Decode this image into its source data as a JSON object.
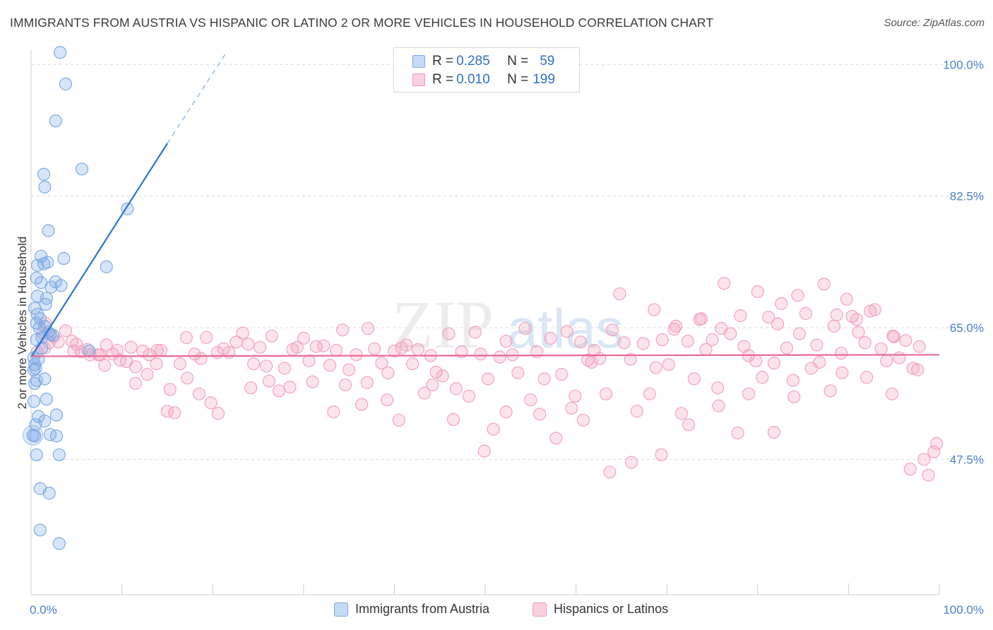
{
  "title": "IMMIGRANTS FROM AUSTRIA VS HISPANIC OR LATINO 2 OR MORE VEHICLES IN HOUSEHOLD CORRELATION CHART",
  "source": "Source: ZipAtlas.com",
  "watermark": {
    "zip": "ZIP",
    "atlas": "atlas"
  },
  "legend": {
    "rows": [
      {
        "r_label": "R =",
        "r_value": "0.285",
        "n_label": "N =",
        "n_value": "59",
        "color": "#7aa9e8"
      },
      {
        "r_label": "R =",
        "r_value": "0.010",
        "n_label": "N =",
        "n_value": "199",
        "color": "#f19ab6"
      }
    ]
  },
  "bottom_legend": [
    {
      "label": "Immigrants from Austria",
      "color": "#7aa9e8"
    },
    {
      "label": "Hispanics or Latinos",
      "color": "#f19ab6"
    }
  ],
  "chart_data": {
    "type": "scatter",
    "title": "IMMIGRANTS FROM AUSTRIA VS HISPANIC OR LATINO 2 OR MORE VEHICLES IN HOUSEHOLD CORRELATION CHART",
    "xlabel": "",
    "ylabel": "2 or more Vehicles in Household",
    "xlim": [
      0,
      100
    ],
    "ylim": [
      29.5,
      102
    ],
    "x_tick_labels": [
      "0.0%",
      "100.0%"
    ],
    "y_ticks": [
      47.5,
      65.0,
      82.5,
      100.0
    ],
    "y_tick_labels": [
      "47.5%",
      "65.0%",
      "82.5%",
      "100.0%"
    ],
    "grid": true,
    "series": [
      {
        "name": "Immigrants from Austria",
        "color": "#7aa9e8",
        "trend": {
          "x0": 0.0,
          "y0": 61.1,
          "x1": 15.0,
          "y1": 89.5,
          "dash_to_x": 21.5,
          "dash_to_y": 101.6
        },
        "points": [
          [
            3.2,
            101.6
          ],
          [
            3.8,
            97.4
          ],
          [
            2.7,
            92.5
          ],
          [
            5.6,
            86.1
          ],
          [
            1.4,
            85.4
          ],
          [
            1.5,
            83.7
          ],
          [
            10.6,
            80.8
          ],
          [
            1.9,
            77.9
          ],
          [
            3.6,
            74.2
          ],
          [
            8.3,
            73.1
          ],
          [
            1.1,
            74.5
          ],
          [
            1.8,
            73.7
          ],
          [
            0.7,
            73.3
          ],
          [
            1.4,
            73.5
          ],
          [
            0.6,
            71.6
          ],
          [
            1.1,
            71.0
          ],
          [
            2.7,
            71.1
          ],
          [
            2.2,
            70.4
          ],
          [
            3.3,
            70.6
          ],
          [
            1.7,
            68.9
          ],
          [
            0.7,
            69.2
          ],
          [
            1.6,
            68.1
          ],
          [
            0.4,
            67.6
          ],
          [
            0.7,
            66.8
          ],
          [
            0.6,
            65.6
          ],
          [
            1.0,
            66.2
          ],
          [
            1.5,
            65.2
          ],
          [
            1.9,
            64.4
          ],
          [
            2.4,
            64.0
          ],
          [
            1.2,
            63.7
          ],
          [
            0.6,
            63.4
          ],
          [
            2.1,
            64.1
          ],
          [
            6.4,
            61.9
          ],
          [
            0.8,
            60.8
          ],
          [
            0.4,
            60.1
          ],
          [
            0.3,
            59.4
          ],
          [
            0.5,
            59.6
          ],
          [
            0.6,
            58.0
          ],
          [
            1.5,
            58.2
          ],
          [
            0.4,
            57.6
          ],
          [
            1.7,
            55.5
          ],
          [
            0.3,
            55.2
          ],
          [
            0.8,
            53.2
          ],
          [
            1.5,
            52.6
          ],
          [
            2.8,
            53.4
          ],
          [
            0.5,
            52.1
          ],
          [
            2.1,
            50.8
          ],
          [
            2.8,
            50.6
          ],
          [
            0.2,
            50.7
          ],
          [
            0.4,
            50.6
          ],
          [
            0.6,
            48.1
          ],
          [
            3.1,
            48.1
          ],
          [
            1.0,
            43.6
          ],
          [
            2.0,
            43.0
          ],
          [
            1.0,
            38.1
          ],
          [
            3.1,
            36.3
          ],
          [
            0.3,
            61.0
          ],
          [
            1.2,
            62.3
          ],
          [
            0.9,
            65.0
          ]
        ]
      },
      {
        "name": "Hispanics or Latinos",
        "color": "#f19ab6",
        "trend": {
          "x0": 0.0,
          "y0": 61.2,
          "x1": 100.0,
          "y1": 61.4
        },
        "points": [
          [
            1.3,
            64.3
          ],
          [
            2.5,
            63.8
          ],
          [
            1.6,
            65.6
          ],
          [
            3.0,
            63.1
          ],
          [
            4.7,
            61.9
          ],
          [
            4.5,
            63.2
          ],
          [
            3.8,
            64.6
          ],
          [
            5.0,
            62.8
          ],
          [
            5.5,
            61.8
          ],
          [
            6.2,
            62.1
          ],
          [
            7.6,
            61.4
          ],
          [
            8.3,
            62.7
          ],
          [
            9.0,
            61.5
          ],
          [
            9.8,
            60.7
          ],
          [
            10.5,
            60.5
          ],
          [
            11.0,
            62.4
          ],
          [
            11.5,
            59.8
          ],
          [
            12.3,
            61.9
          ],
          [
            13.0,
            61.4
          ],
          [
            13.8,
            60.2
          ],
          [
            14.3,
            62.0
          ],
          [
            15.3,
            56.8
          ],
          [
            15.8,
            53.7
          ],
          [
            16.4,
            60.2
          ],
          [
            17.1,
            63.7
          ],
          [
            18.0,
            61.5
          ],
          [
            18.7,
            60.9
          ],
          [
            19.3,
            63.7
          ],
          [
            19.8,
            55.0
          ],
          [
            20.5,
            61.7
          ],
          [
            21.2,
            62.2
          ],
          [
            21.8,
            61.7
          ],
          [
            22.6,
            63.1
          ],
          [
            23.3,
            64.3
          ],
          [
            23.9,
            62.8
          ],
          [
            24.5,
            60.2
          ],
          [
            25.2,
            62.4
          ],
          [
            25.9,
            59.9
          ],
          [
            26.5,
            63.9
          ],
          [
            27.3,
            56.6
          ],
          [
            27.9,
            59.6
          ],
          [
            28.8,
            62.1
          ],
          [
            29.3,
            62.4
          ],
          [
            30.0,
            63.6
          ],
          [
            30.6,
            60.6
          ],
          [
            31.4,
            62.5
          ],
          [
            32.2,
            62.6
          ],
          [
            32.9,
            60.0
          ],
          [
            33.6,
            62.0
          ],
          [
            34.3,
            64.7
          ],
          [
            35.0,
            59.4
          ],
          [
            35.8,
            61.4
          ],
          [
            36.4,
            54.8
          ],
          [
            37.1,
            64.9
          ],
          [
            37.8,
            62.2
          ],
          [
            38.6,
            60.3
          ],
          [
            39.3,
            59.0
          ],
          [
            40.0,
            61.9
          ],
          [
            40.8,
            62.3
          ],
          [
            41.3,
            62.7
          ],
          [
            42.0,
            60.2
          ],
          [
            42.6,
            62.1
          ],
          [
            43.3,
            56.3
          ],
          [
            44.0,
            61.3
          ],
          [
            44.6,
            59.1
          ],
          [
            45.3,
            58.6
          ],
          [
            46.0,
            64.2
          ],
          [
            46.8,
            56.9
          ],
          [
            47.4,
            61.8
          ],
          [
            48.2,
            55.9
          ],
          [
            48.9,
            64.4
          ],
          [
            49.5,
            61.5
          ],
          [
            50.3,
            58.2
          ],
          [
            50.9,
            51.5
          ],
          [
            51.6,
            61.1
          ],
          [
            52.3,
            63.2
          ],
          [
            53.0,
            61.4
          ],
          [
            53.6,
            59.0
          ],
          [
            54.4,
            64.9
          ],
          [
            55.0,
            55.4
          ],
          [
            55.7,
            61.8
          ],
          [
            56.5,
            58.2
          ],
          [
            57.2,
            63.6
          ],
          [
            57.8,
            50.3
          ],
          [
            58.4,
            58.8
          ],
          [
            59.0,
            64.5
          ],
          [
            59.9,
            55.9
          ],
          [
            60.5,
            63.1
          ],
          [
            61.3,
            60.7
          ],
          [
            62.0,
            62.0
          ],
          [
            62.6,
            60.9
          ],
          [
            63.3,
            56.2
          ],
          [
            64.0,
            64.7
          ],
          [
            64.8,
            69.5
          ],
          [
            65.3,
            63.0
          ],
          [
            66.0,
            60.8
          ],
          [
            66.7,
            53.9
          ],
          [
            67.4,
            62.9
          ],
          [
            68.1,
            56.2
          ],
          [
            68.8,
            59.7
          ],
          [
            69.5,
            63.4
          ],
          [
            70.2,
            60.1
          ],
          [
            70.8,
            64.8
          ],
          [
            71.6,
            53.6
          ],
          [
            72.3,
            63.2
          ],
          [
            73.0,
            58.2
          ],
          [
            73.6,
            66.1
          ],
          [
            74.3,
            62.1
          ],
          [
            75.0,
            63.4
          ],
          [
            75.6,
            57.0
          ],
          [
            76.3,
            70.9
          ],
          [
            77.0,
            64.2
          ],
          [
            77.8,
            51.0
          ],
          [
            78.5,
            62.5
          ],
          [
            79.0,
            61.3
          ],
          [
            79.8,
            60.6
          ],
          [
            80.5,
            58.4
          ],
          [
            81.2,
            66.4
          ],
          [
            81.8,
            60.3
          ],
          [
            82.6,
            68.2
          ],
          [
            83.2,
            62.3
          ],
          [
            83.9,
            58.0
          ],
          [
            84.6,
            64.2
          ],
          [
            85.3,
            66.9
          ],
          [
            85.9,
            59.6
          ],
          [
            86.5,
            62.7
          ],
          [
            87.3,
            70.8
          ],
          [
            88.0,
            56.6
          ],
          [
            88.7,
            66.7
          ],
          [
            89.2,
            61.6
          ],
          [
            89.8,
            68.8
          ],
          [
            90.4,
            66.5
          ],
          [
            91.1,
            64.4
          ],
          [
            91.8,
            63.0
          ],
          [
            92.4,
            67.2
          ],
          [
            92.9,
            67.4
          ],
          [
            93.6,
            62.2
          ],
          [
            94.2,
            60.6
          ],
          [
            94.9,
            63.9
          ],
          [
            95.6,
            61.0
          ],
          [
            96.3,
            63.3
          ],
          [
            97.1,
            59.6
          ],
          [
            97.8,
            62.5
          ],
          [
            98.3,
            47.5
          ],
          [
            98.8,
            45.4
          ],
          [
            99.4,
            48.5
          ],
          [
            99.7,
            49.6
          ],
          [
            96.8,
            46.2
          ],
          [
            94.8,
            56.2
          ],
          [
            92.0,
            58.4
          ],
          [
            89.3,
            59.0
          ],
          [
            86.8,
            60.4
          ],
          [
            84.0,
            55.8
          ],
          [
            81.8,
            51.1
          ],
          [
            79.0,
            56.2
          ],
          [
            75.7,
            54.6
          ],
          [
            72.4,
            52.1
          ],
          [
            69.4,
            48.1
          ],
          [
            66.1,
            47.1
          ],
          [
            63.7,
            45.8
          ],
          [
            60.8,
            52.7
          ],
          [
            56.0,
            53.5
          ],
          [
            52.3,
            53.8
          ],
          [
            49.9,
            48.6
          ],
          [
            46.5,
            52.8
          ],
          [
            44.2,
            57.4
          ],
          [
            40.5,
            52.7
          ],
          [
            39.2,
            55.4
          ],
          [
            37.0,
            57.7
          ],
          [
            34.6,
            57.4
          ],
          [
            33.3,
            53.8
          ],
          [
            31.0,
            57.8
          ],
          [
            28.5,
            57.1
          ],
          [
            26.2,
            57.9
          ],
          [
            24.2,
            57.0
          ],
          [
            20.6,
            53.6
          ],
          [
            18.5,
            56.2
          ],
          [
            17.2,
            58.3
          ],
          [
            15.0,
            53.9
          ],
          [
            12.8,
            58.8
          ],
          [
            11.5,
            57.6
          ],
          [
            8.1,
            60.0
          ],
          [
            7.4,
            61.4
          ],
          [
            6.5,
            61.4
          ],
          [
            9.5,
            62.0
          ],
          [
            13.9,
            62.0
          ],
          [
            2.0,
            63.0
          ],
          [
            1.5,
            62.3
          ],
          [
            0.7,
            61.8
          ],
          [
            68.6,
            67.4
          ],
          [
            71.0,
            65.2
          ],
          [
            73.8,
            66.2
          ],
          [
            76.0,
            64.9
          ],
          [
            78.1,
            66.6
          ],
          [
            80.0,
            69.8
          ],
          [
            82.2,
            65.5
          ],
          [
            84.4,
            69.3
          ],
          [
            88.4,
            65.2
          ],
          [
            90.9,
            66.1
          ],
          [
            95.0,
            63.8
          ],
          [
            97.6,
            59.4
          ],
          [
            59.5,
            54.3
          ],
          [
            61.7,
            60.4
          ]
        ]
      }
    ]
  }
}
